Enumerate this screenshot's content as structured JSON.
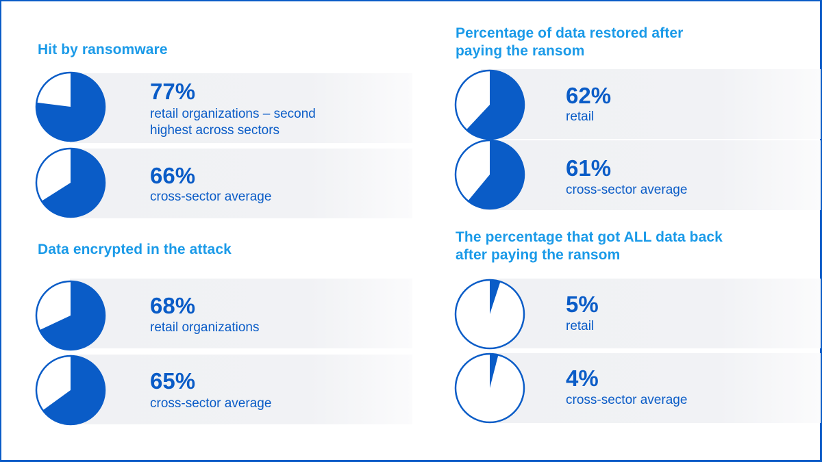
{
  "colors": {
    "accent": "#0a5cc7",
    "title": "#1a9ae8",
    "row_bg": "#f0f1f4"
  },
  "sections": [
    {
      "title": "Hit by ransomware",
      "items": [
        {
          "value": "77%",
          "percent": 77,
          "label": "retail organizations – second highest across sectors",
          "label_lines": [
            "retail organizations – second",
            "highest across sectors"
          ]
        },
        {
          "value": "66%",
          "percent": 66,
          "label": "cross-sector average",
          "label_lines": [
            "cross-sector average"
          ]
        }
      ]
    },
    {
      "title": "Data encrypted in the attack",
      "items": [
        {
          "value": "68%",
          "percent": 68,
          "label": "retail organizations",
          "label_lines": [
            "retail organizations"
          ]
        },
        {
          "value": "65%",
          "percent": 65,
          "label": "cross-sector average",
          "label_lines": [
            "cross-sector average"
          ]
        }
      ]
    },
    {
      "title": "Percentage of data restored after paying the ransom",
      "title_lines": [
        "Percentage of data restored after",
        "paying the ransom"
      ],
      "items": [
        {
          "value": "62%",
          "percent": 62,
          "label": "retail",
          "label_lines": [
            "retail"
          ]
        },
        {
          "value": "61%",
          "percent": 61,
          "label": "cross-sector average",
          "label_lines": [
            "cross-sector average"
          ]
        }
      ]
    },
    {
      "title": "The percentage that got ALL data back after paying the ransom",
      "title_lines": [
        "The percentage that got ALL data back",
        "after paying the ransom"
      ],
      "items": [
        {
          "value": "5%",
          "percent": 5,
          "label": "retail",
          "label_lines": [
            "retail"
          ]
        },
        {
          "value": "4%",
          "percent": 4,
          "label": "cross-sector average",
          "label_lines": [
            "cross-sector average"
          ]
        }
      ]
    }
  ],
  "chart_data": {
    "type": "pie",
    "title": "Ransomware impact on retail vs cross-sector average",
    "series": [
      {
        "name": "Hit by ransomware",
        "categories": [
          "retail organizations",
          "cross-sector average"
        ],
        "values": [
          77,
          66
        ],
        "unit": "%"
      },
      {
        "name": "Data encrypted in the attack",
        "categories": [
          "retail organizations",
          "cross-sector average"
        ],
        "values": [
          68,
          65
        ],
        "unit": "%"
      },
      {
        "name": "Percentage of data restored after paying the ransom",
        "categories": [
          "retail",
          "cross-sector average"
        ],
        "values": [
          62,
          61
        ],
        "unit": "%"
      },
      {
        "name": "The percentage that got ALL data back after paying the ransom",
        "categories": [
          "retail",
          "cross-sector average"
        ],
        "values": [
          5,
          4
        ],
        "unit": "%"
      }
    ]
  }
}
